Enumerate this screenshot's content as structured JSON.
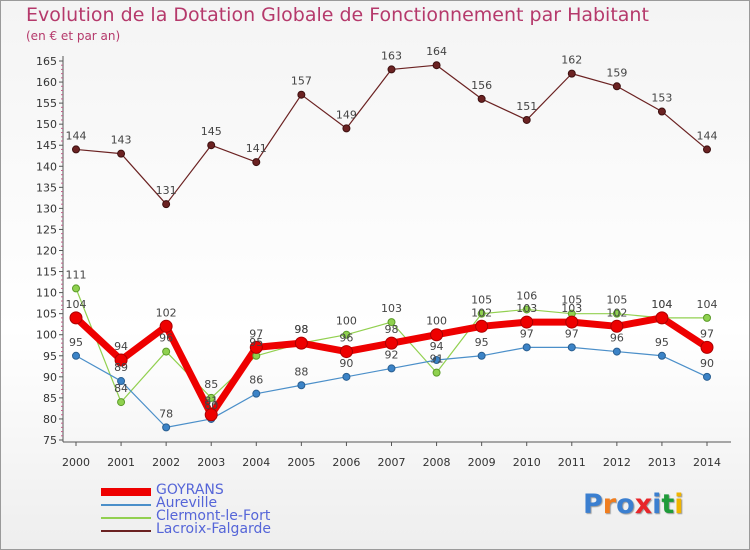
{
  "chart_data": {
    "type": "line",
    "title": "Evolution de la Dotation Globale de Fonctionnement par Habitant",
    "subtitle": "(en € et par an)",
    "x": [
      "2000",
      "2001",
      "2002",
      "2003",
      "2004",
      "2005",
      "2006",
      "2007",
      "2008",
      "2009",
      "2010",
      "2011",
      "2012",
      "2013",
      "2014"
    ],
    "ylim": [
      75,
      165
    ],
    "yticks": [
      "75",
      "80",
      "85",
      "90",
      "95",
      "100",
      "105",
      "110",
      "115",
      "120",
      "125",
      "130",
      "135",
      "140",
      "145",
      "150",
      "155",
      "160",
      "165"
    ],
    "grid": false,
    "series": [
      {
        "name": "GOYRANS",
        "color": "#ee0000",
        "values": [
          104,
          94,
          102,
          81,
          97,
          98,
          96,
          98,
          100,
          102,
          103,
          103,
          102,
          104,
          97
        ],
        "labels": [
          "104",
          "94",
          "102",
          "81",
          "97",
          "98",
          "96",
          "98",
          "100",
          "102",
          "103",
          "103",
          "102",
          "104",
          "97"
        ]
      },
      {
        "name": "Aureville",
        "color": "#4b8fc9",
        "values": [
          95,
          89,
          78,
          80,
          86,
          88,
          90,
          92,
          94,
          95,
          97,
          97,
          96,
          95,
          90
        ],
        "labels": [
          "95",
          "89",
          "78",
          "80",
          "86",
          "88",
          "90",
          "92",
          "94",
          "95",
          "97",
          "97",
          "96",
          "95",
          "90"
        ]
      },
      {
        "name": "Clermont-le-Fort",
        "color": "#92d050",
        "values": [
          111,
          84,
          96,
          85,
          95,
          98,
          100,
          103,
          91,
          105,
          106,
          105,
          105,
          104,
          104
        ],
        "labels": [
          "111",
          "84",
          "96",
          "85",
          "95",
          "98",
          "100",
          "103",
          "91",
          "105",
          "106",
          "105",
          "105",
          "104",
          "104"
        ]
      },
      {
        "name": "Lacroix-Falgarde",
        "color": "#6b2222",
        "values": [
          144,
          143,
          131,
          145,
          141,
          157,
          149,
          163,
          164,
          156,
          151,
          162,
          159,
          153,
          144
        ],
        "labels": [
          "144",
          "143",
          "131",
          "145",
          "141",
          "157",
          "149",
          "163",
          "164",
          "156",
          "151",
          "162",
          "159",
          "153",
          "144"
        ]
      }
    ]
  },
  "logo": {
    "text": "Proxiti",
    "letters": [
      "P",
      "r",
      "o",
      "x",
      "i",
      "t",
      "i"
    ],
    "colors": [
      "#3b7fd0",
      "#f07d1e",
      "#3b7fd0",
      "#e8262a",
      "#3b7fd0",
      "#1f9b3a",
      "#f0b400"
    ]
  }
}
